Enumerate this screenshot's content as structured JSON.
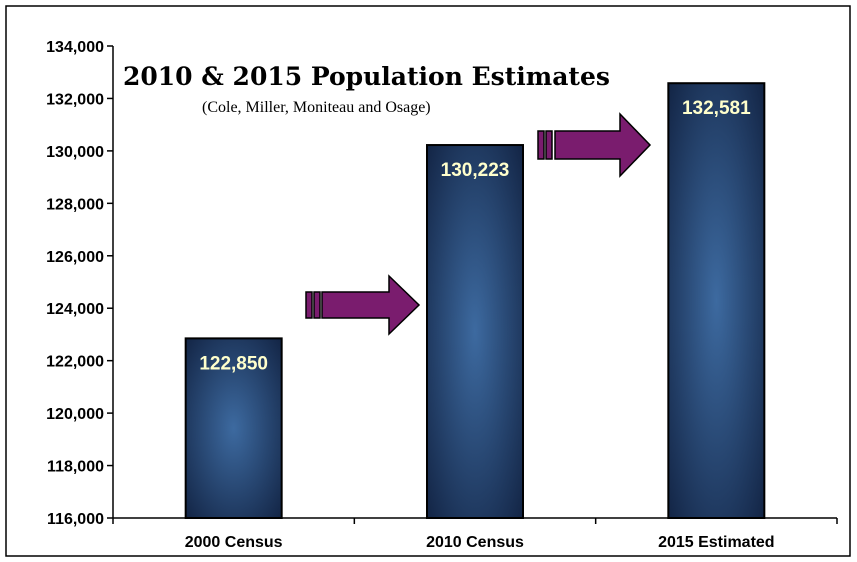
{
  "chart_data": {
    "type": "bar",
    "title": "2010 & 2015 Population Estimates",
    "subtitle": "(Cole, Miller, Moniteau and Osage)",
    "categories": [
      "2000 Census",
      "2010 Census",
      "2015 Estimated"
    ],
    "values": [
      122850,
      130223,
      132581
    ],
    "data_labels": [
      "122,850",
      "130,223",
      "132,581"
    ],
    "ylim": [
      116000,
      134000
    ],
    "yticks": [
      116000,
      118000,
      120000,
      122000,
      124000,
      126000,
      128000,
      130000,
      132000,
      134000
    ],
    "ytick_labels": [
      "116,000",
      "118,000",
      "120,000",
      "122,000",
      "124,000",
      "126,000",
      "128,000",
      "130,000",
      "132,000",
      "134,000"
    ],
    "xlabel": "",
    "ylabel": "",
    "grid": false,
    "legend": "none",
    "colors": {
      "bar_edge": "#10203f",
      "bar_center": "#3d6aa0",
      "data_label": "#FFFFCC",
      "arrow": "#7a1c6e"
    },
    "annotations": [
      "arrow 2000 Census to 2010 Census",
      "arrow 2010 Census to 2015 Estimated"
    ]
  }
}
